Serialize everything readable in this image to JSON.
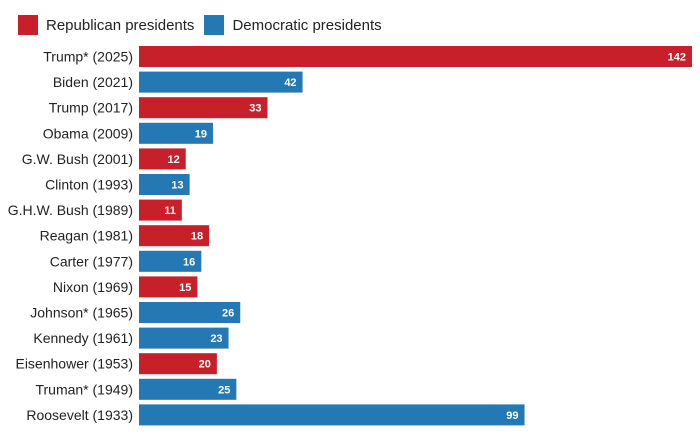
{
  "legend": {
    "republican_label": "Republican presidents",
    "democratic_label": "Democratic presidents"
  },
  "colors": {
    "republican": "#c8202a",
    "democratic": "#2478b3",
    "label_text": "#222222",
    "value_text": "#ffffff"
  },
  "chart_data": {
    "type": "bar",
    "orientation": "horizontal",
    "title": "",
    "xlabel": "",
    "ylabel": "",
    "xlim": [
      0,
      142
    ],
    "categories": [
      "Trump* (2025)",
      "Biden (2021)",
      "Trump (2017)",
      "Obama (2009)",
      "G.W. Bush (2001)",
      "Clinton (1993)",
      "G.H.W. Bush (1989)",
      "Reagan (1981)",
      "Carter (1977)",
      "Nixon (1969)",
      "Johnson* (1965)",
      "Kennedy (1961)",
      "Eisenhower (1953)",
      "Truman* (1949)",
      "Roosevelt (1933)"
    ],
    "values": [
      142,
      42,
      33,
      19,
      12,
      13,
      11,
      18,
      16,
      15,
      26,
      23,
      20,
      25,
      99
    ],
    "parties": [
      "R",
      "D",
      "R",
      "D",
      "R",
      "D",
      "R",
      "R",
      "D",
      "R",
      "D",
      "D",
      "R",
      "D",
      "D"
    ],
    "series_names": {
      "R": "Republican presidents",
      "D": "Democratic presidents"
    },
    "grid": false,
    "legend_position": "top-left"
  }
}
